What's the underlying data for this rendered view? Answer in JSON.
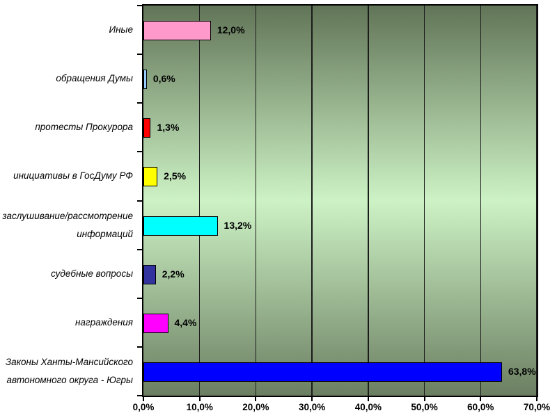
{
  "chart_data": {
    "type": "bar",
    "orientation": "horizontal",
    "title": "",
    "xlabel": "",
    "ylabel": "",
    "grid": "vertical-major",
    "legend": "none",
    "xlim": [
      0,
      70
    ],
    "x_ticks": [
      "0,0%",
      "10,0%",
      "20,0%",
      "30,0%",
      "40,0%",
      "50,0%",
      "60,0%",
      "70,0%"
    ],
    "x_tick_values": [
      0,
      10,
      20,
      30,
      40,
      50,
      60,
      70
    ],
    "categories": [
      "Иные",
      "обращения Думы",
      "протесты Прокурора",
      "инициативы в ГосДуму РФ",
      "заслушивание/рассмотрение информаций",
      "судебные вопросы",
      "награждения",
      "Законы Ханты-Мансийского автономного округа - Югры"
    ],
    "category_lines": [
      [
        "Иные"
      ],
      [
        "обращения Думы"
      ],
      [
        "протесты Прокурора"
      ],
      [
        "инициативы в ГосДуму РФ"
      ],
      [
        "заслушивание/рассмотрение",
        "информаций"
      ],
      [
        "судебные вопросы"
      ],
      [
        "награждения"
      ],
      [
        "Законы Ханты-Мансийского",
        "автономного округа - Югры"
      ]
    ],
    "values": [
      12.0,
      0.6,
      1.3,
      2.5,
      13.2,
      2.2,
      4.4,
      63.8
    ],
    "value_labels": [
      "12,0%",
      "0,6%",
      "1,3%",
      "2,5%",
      "13,2%",
      "2,2%",
      "4,4%",
      "63,8%"
    ],
    "bar_colors": [
      "#ff99cc",
      "#99ccff",
      "#ff0000",
      "#ffff00",
      "#00ffff",
      "#3333a0",
      "#ff00ff",
      "#0000ff"
    ],
    "bar_border_color": "#000000",
    "gridline_color": "#1b1b1b",
    "plot_bg_gradient_top": "#617457",
    "plot_bg_gradient_middle": "#cdf2c5",
    "plot_bg_gradient_bottom": "#6b7e61",
    "text_color": "#000000"
  }
}
